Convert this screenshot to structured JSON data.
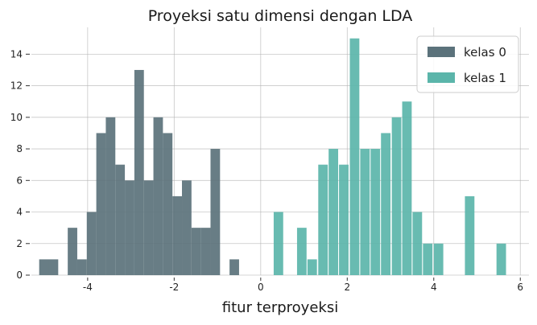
{
  "chart_data": {
    "type": "bar",
    "title": "Proyeksi satu dimensi dengan LDA",
    "xlabel": "fitur terproyeksi",
    "ylabel": "",
    "xlim": [
      -5.3,
      6.2
    ],
    "ylim": [
      0,
      15.7
    ],
    "grid": true,
    "legend_position": "top-right",
    "x_ticks": [
      -4,
      -2,
      0,
      2,
      4,
      6
    ],
    "x_tick_labels": [
      "-4",
      "-2",
      "0",
      "2",
      "4",
      "6"
    ],
    "y_ticks": [
      0,
      2,
      4,
      6,
      8,
      10,
      12,
      14
    ],
    "y_tick_labels": [
      "0",
      "2",
      "4",
      "6",
      "8",
      "10",
      "12",
      "14"
    ],
    "bin_width": 0.22,
    "series": [
      {
        "name": "kelas 0",
        "color": "#5b727b",
        "bin_starts": [
          -5.12,
          -4.9,
          -4.46,
          -4.24,
          -4.02,
          -3.8,
          -3.58,
          -3.36,
          -3.14,
          -2.92,
          -2.7,
          -2.48,
          -2.26,
          -2.04,
          -1.82,
          -1.6,
          -1.38,
          -1.16,
          -0.72
        ],
        "counts": [
          1,
          1,
          3,
          1,
          4,
          9,
          10,
          7,
          6,
          13,
          6,
          10,
          9,
          5,
          6,
          3,
          3,
          8,
          1
        ]
      },
      {
        "name": "kelas 1",
        "color": "#5bb5aa",
        "bin_starts": [
          0.3,
          0.84,
          1.08,
          1.33,
          1.57,
          1.81,
          2.06,
          2.3,
          2.54,
          2.78,
          3.03,
          3.27,
          3.51,
          3.75,
          4.0,
          4.24,
          4.72,
          5.45
        ],
        "counts": [
          4,
          3,
          1,
          7,
          8,
          7,
          15,
          8,
          8,
          9,
          10,
          11,
          4,
          2,
          2,
          0,
          5,
          2
        ]
      }
    ]
  }
}
